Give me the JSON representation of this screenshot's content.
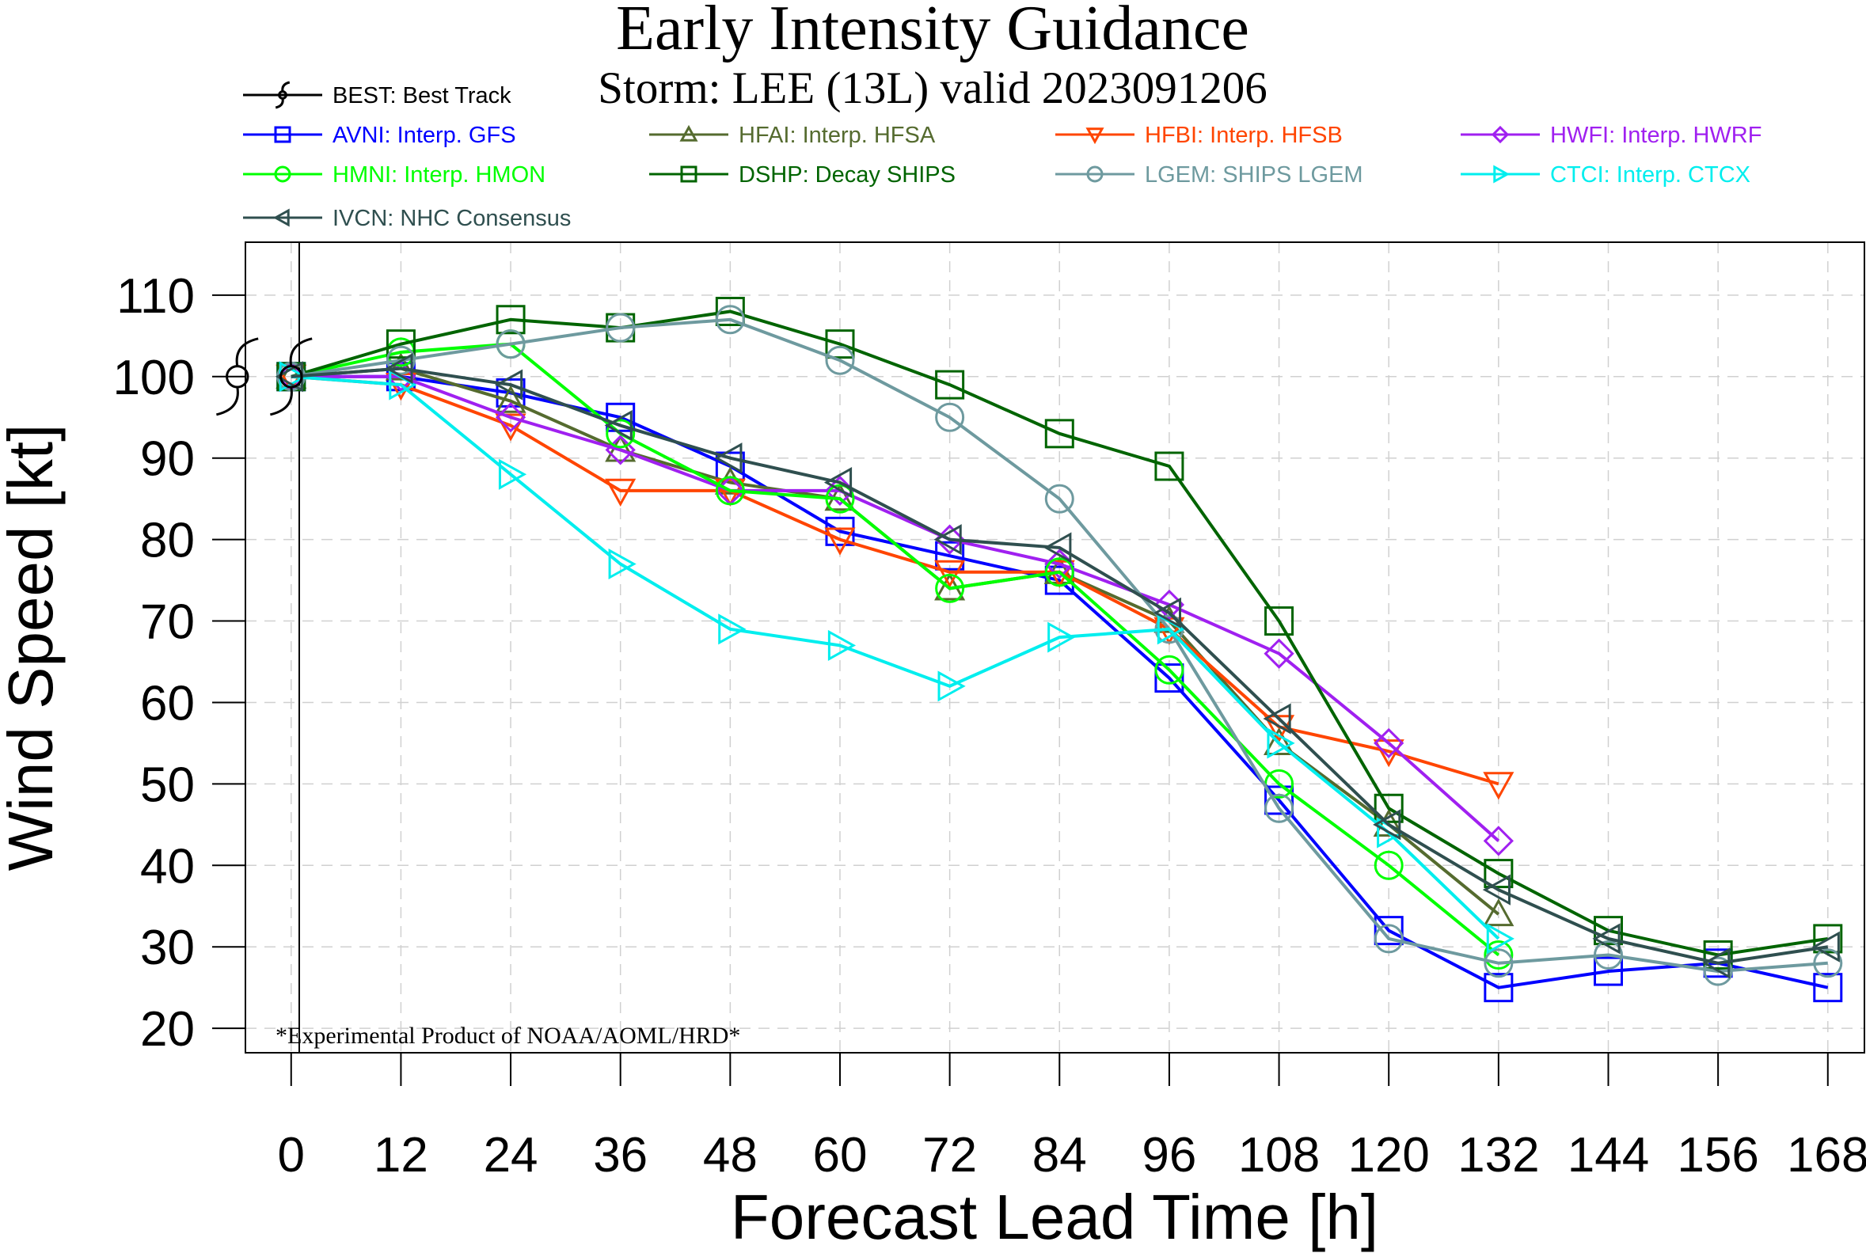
{
  "chart_data": {
    "type": "line",
    "title": "Early Intensity Guidance",
    "subtitle": "Storm: LEE (13L) valid 2023091206",
    "xlabel": "Forecast Lead Time [h]",
    "ylabel": "Wind Speed [kt]",
    "xlim": [
      -5,
      172
    ],
    "ylim": [
      17,
      116.5
    ],
    "x_ticks": [
      0,
      12,
      24,
      36,
      48,
      60,
      72,
      84,
      96,
      108,
      120,
      132,
      144,
      156,
      168
    ],
    "y_ticks": [
      20,
      30,
      40,
      50,
      60,
      70,
      80,
      90,
      100,
      110
    ],
    "grid": true,
    "legend_placement": "top",
    "footnote": "*Experimental Product of NOAA/AOML/HRD*",
    "series": [
      {
        "id": "BEST",
        "name": "BEST: Best Track",
        "color": "#000000",
        "marker": "hurricane",
        "x": [
          0
        ],
        "y": [
          100
        ]
      },
      {
        "id": "AVNI",
        "name": "AVNI: Interp. GFS",
        "color": "#0000ff",
        "marker": "square",
        "x": [
          0,
          12,
          24,
          36,
          48,
          60,
          72,
          84,
          96,
          108,
          120,
          132,
          144,
          156,
          168
        ],
        "y": [
          100,
          100,
          98,
          95,
          89,
          81,
          78,
          75,
          63,
          48,
          32,
          25,
          27,
          28,
          25
        ]
      },
      {
        "id": "HFAI",
        "name": "HFAI: Interp. HFSA",
        "color": "#556b2f",
        "marker": "triangle-up",
        "x": [
          0,
          12,
          24,
          36,
          48,
          60,
          72,
          84,
          96,
          108,
          120,
          132
        ],
        "y": [
          100,
          101,
          97,
          91,
          87,
          85,
          74,
          76,
          70,
          55,
          45,
          34
        ]
      },
      {
        "id": "HFBI",
        "name": "HFBI: Interp. HFSB",
        "color": "#ff4500",
        "marker": "triangle-down",
        "x": [
          0,
          12,
          24,
          36,
          48,
          60,
          72,
          84,
          96,
          108,
          120,
          132
        ],
        "y": [
          100,
          99,
          94,
          86,
          86,
          80,
          76,
          76,
          69,
          57,
          54,
          50
        ]
      },
      {
        "id": "HWFI",
        "name": "HWFI: Interp. HWRF",
        "color": "#a020f0",
        "marker": "diamond",
        "x": [
          0,
          12,
          24,
          36,
          48,
          60,
          72,
          84,
          96,
          108,
          120,
          132
        ],
        "y": [
          100,
          100,
          95,
          91,
          86,
          86,
          80,
          77,
          72,
          66,
          55,
          43
        ]
      },
      {
        "id": "HMNI",
        "name": "HMNI: Interp. HMON",
        "color": "#00ff00",
        "marker": "circle",
        "x": [
          0,
          12,
          24,
          36,
          48,
          60,
          72,
          84,
          96,
          108,
          120,
          132
        ],
        "y": [
          100,
          103,
          104,
          93,
          86,
          85,
          74,
          76,
          64,
          50,
          40,
          29
        ]
      },
      {
        "id": "DSHP",
        "name": "DSHP: Decay SHIPS",
        "color": "#006400",
        "marker": "square",
        "x": [
          0,
          12,
          24,
          36,
          48,
          60,
          72,
          84,
          96,
          108,
          120,
          132,
          144,
          156,
          168
        ],
        "y": [
          100,
          104,
          107,
          106,
          108,
          104,
          99,
          93,
          89,
          70,
          47,
          39,
          32,
          29,
          31
        ]
      },
      {
        "id": "LGEM",
        "name": "LGEM: SHIPS LGEM",
        "color": "#6e9a9f",
        "marker": "circle",
        "x": [
          0,
          12,
          24,
          36,
          48,
          60,
          72,
          84,
          96,
          108,
          120,
          132,
          144,
          156,
          168
        ],
        "y": [
          100,
          102,
          104,
          106,
          107,
          102,
          95,
          85,
          69,
          47,
          31,
          28,
          29,
          27,
          28
        ]
      },
      {
        "id": "CTCI",
        "name": "CTCI: Interp. CTCX",
        "color": "#00eeee",
        "marker": "triangle-right",
        "x": [
          0,
          12,
          24,
          36,
          48,
          60,
          72,
          84,
          96,
          108,
          120,
          132
        ],
        "y": [
          100,
          99,
          88,
          77,
          69,
          67,
          62,
          68,
          69,
          55,
          44,
          31
        ]
      },
      {
        "id": "IVCN",
        "name": "IVCN: NHC Consensus",
        "color": "#2f4f4f",
        "marker": "triangle-left",
        "x": [
          0,
          12,
          24,
          36,
          48,
          60,
          72,
          84,
          96,
          108,
          120,
          132,
          144,
          156,
          168
        ],
        "y": [
          100,
          101,
          99,
          94,
          90,
          87,
          80,
          79,
          71,
          58,
          45,
          37,
          31,
          28,
          30
        ]
      }
    ]
  }
}
